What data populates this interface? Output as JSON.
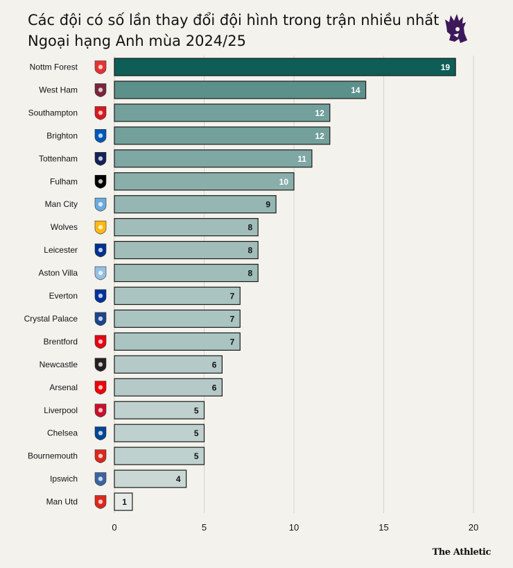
{
  "header": {
    "title_line1": "Các đội có số lần thay đổi đội hình trong trận nhiều nhất",
    "title_line2": "Ngoại hạng Anh mùa 2024/25"
  },
  "footer": {
    "source": "The Athletic"
  },
  "chart_data": {
    "type": "bar",
    "orientation": "horizontal",
    "title": "Các đội có số lần thay đổi đội hình trong trận nhiều nhất Ngoại hạng Anh mùa 2024/25",
    "xlabel": "",
    "ylabel": "",
    "xlim": [
      0,
      20
    ],
    "xticks": [
      0,
      5,
      10,
      15,
      20
    ],
    "grid": true,
    "categories": [
      "Nottm Forest",
      "West Ham",
      "Southampton",
      "Brighton",
      "Tottenham",
      "Fulham",
      "Man City",
      "Wolves",
      "Leicester",
      "Aston Villa",
      "Everton",
      "Crystal Palace",
      "Brentford",
      "Newcastle",
      "Arsenal",
      "Liverpool",
      "Chelsea",
      "Bournemouth",
      "Ipswich",
      "Man Utd"
    ],
    "values": [
      19,
      14,
      12,
      12,
      11,
      10,
      9,
      8,
      8,
      8,
      7,
      7,
      7,
      6,
      6,
      5,
      5,
      5,
      4,
      1
    ],
    "crest_colors": [
      "#e53233",
      "#7a263a",
      "#d71920",
      "#0057b8",
      "#132257",
      "#000000",
      "#6cabdd",
      "#fdb913",
      "#003090",
      "#95bfe5",
      "#003399",
      "#1b458f",
      "#e30613",
      "#241f20",
      "#ef0107",
      "#c8102e",
      "#034694",
      "#da291c",
      "#3a64a3",
      "#da291c"
    ],
    "crest_icons": [
      "forest-crest-icon",
      "west-ham-crest-icon",
      "southampton-crest-icon",
      "brighton-crest-icon",
      "tottenham-crest-icon",
      "fulham-crest-icon",
      "man-city-crest-icon",
      "wolves-crest-icon",
      "leicester-crest-icon",
      "aston-villa-crest-icon",
      "everton-crest-icon",
      "crystal-palace-crest-icon",
      "brentford-crest-icon",
      "newcastle-crest-icon",
      "arsenal-crest-icon",
      "liverpool-crest-icon",
      "chelsea-crest-icon",
      "bournemouth-crest-icon",
      "ipswich-crest-icon",
      "man-utd-crest-icon"
    ],
    "color_max": "#0f5d57",
    "color_min": "#e6ebe9",
    "bar_border": "#1a1a1a",
    "grid_color": "#d5d3cc"
  },
  "brand": {
    "logo_icon": "premier-league-lion-icon",
    "logo_color": "#3d195b"
  }
}
